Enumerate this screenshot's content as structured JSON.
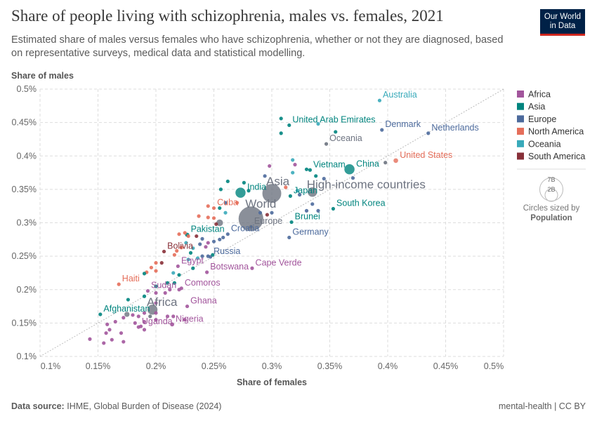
{
  "title": "Share of people living with schizophrenia, males vs. females, 2021",
  "subtitle": "Estimated share of males versus females who have schizophrenia, whether or not they are diagnosed, based on representative surveys, medical data and statistical modelling.",
  "logo": "Our World in Data",
  "footer": {
    "source_label": "Data source:",
    "source": "IHME, Global Burden of Disease (2024)",
    "right": "mental-health | CC BY"
  },
  "size_legend": {
    "big": "7B",
    "small": "2B",
    "caption": "Circles sized by",
    "variable": "Population"
  },
  "chart_data": {
    "type": "scatter",
    "xlabel": "Share of females",
    "ylabel": "Share of males",
    "xlim": [
      0.1,
      0.5
    ],
    "ylim": [
      0.1,
      0.5
    ],
    "xticks": [
      "0.1%",
      "0.15%",
      "0.2%",
      "0.25%",
      "0.3%",
      "0.35%",
      "0.4%",
      "0.45%",
      "0.5%"
    ],
    "yticks": [
      "0.1%",
      "0.15%",
      "0.2%",
      "0.25%",
      "0.3%",
      "0.35%",
      "0.4%",
      "0.45%",
      "0.5%"
    ],
    "grid": true,
    "legend_position": "right",
    "diagonal": "y = x",
    "legend": [
      {
        "name": "Africa",
        "color": "#a2559c"
      },
      {
        "name": "Asia",
        "color": "#00847e"
      },
      {
        "name": "Europe",
        "color": "#4c6a9c"
      },
      {
        "name": "North America",
        "color": "#e56e5a"
      },
      {
        "name": "Oceania",
        "color": "#38aaba"
      },
      {
        "name": "South America",
        "color": "#883039"
      }
    ],
    "region_color": "#6d7380",
    "labeled": [
      {
        "name": "Australia",
        "x": 0.393,
        "y": 0.483,
        "g": "Oceania",
        "pop": 0.026
      },
      {
        "name": "United Arab Emirates",
        "x": 0.315,
        "y": 0.446,
        "g": "Asia",
        "pop": 0.01
      },
      {
        "name": "Denmark",
        "x": 0.395,
        "y": 0.439,
        "g": "Europe",
        "pop": 0.006
      },
      {
        "name": "Netherlands",
        "x": 0.435,
        "y": 0.434,
        "g": "Europe",
        "pop": 0.018
      },
      {
        "name": "Oceania",
        "x": 0.347,
        "y": 0.418,
        "g": "region",
        "pop": 0.045
      },
      {
        "name": "United States",
        "x": 0.407,
        "y": 0.393,
        "g": "North America",
        "pop": 0.337
      },
      {
        "name": "China",
        "x": 0.367,
        "y": 0.38,
        "g": "Asia",
        "pop": 1.43
      },
      {
        "name": "Vietnam",
        "x": 0.333,
        "y": 0.379,
        "g": "Asia",
        "pop": 0.098
      },
      {
        "name": "Asia",
        "x": 0.3,
        "y": 0.344,
        "g": "region",
        "pop": 4.7
      },
      {
        "name": "High-income countries",
        "x": 0.335,
        "y": 0.346,
        "g": "region",
        "pop": 1.25
      },
      {
        "name": "India",
        "x": 0.273,
        "y": 0.345,
        "g": "Asia",
        "pop": 1.41
      },
      {
        "name": "Japan",
        "x": 0.316,
        "y": 0.34,
        "g": "Asia",
        "pop": 0.125
      },
      {
        "name": "World",
        "x": 0.282,
        "y": 0.306,
        "g": "region",
        "pop": 7.95
      },
      {
        "name": "Europe",
        "x": 0.282,
        "y": 0.294,
        "g": "region",
        "pop": 0.12
      },
      {
        "name": "Brunei",
        "x": 0.317,
        "y": 0.301,
        "g": "Asia",
        "pop": 0.0004
      },
      {
        "name": "South Korea",
        "x": 0.353,
        "y": 0.321,
        "g": "Asia",
        "pop": 0.052
      },
      {
        "name": "Germany",
        "x": 0.315,
        "y": 0.278,
        "g": "Europe",
        "pop": 0.083
      },
      {
        "name": "Croatia",
        "x": 0.262,
        "y": 0.283,
        "g": "Europe",
        "pop": 0.004
      },
      {
        "name": "Cuba",
        "x": 0.25,
        "y": 0.322,
        "g": "North America",
        "pop": 0.011
      },
      {
        "name": "Pakistan",
        "x": 0.227,
        "y": 0.282,
        "g": "Asia",
        "pop": 0.23
      },
      {
        "name": "Bolivia",
        "x": 0.207,
        "y": 0.257,
        "g": "South America",
        "pop": 0.012
      },
      {
        "name": "Russia",
        "x": 0.247,
        "y": 0.249,
        "g": "Europe",
        "pop": 0.145
      },
      {
        "name": "Egypt",
        "x": 0.219,
        "y": 0.235,
        "g": "Africa",
        "pop": 0.11
      },
      {
        "name": "Botswana",
        "x": 0.244,
        "y": 0.226,
        "g": "Africa",
        "pop": 0.0026
      },
      {
        "name": "Cape Verde",
        "x": 0.283,
        "y": 0.232,
        "g": "Africa",
        "pop": 0.0006
      },
      {
        "name": "Haiti",
        "x": 0.168,
        "y": 0.208,
        "g": "North America",
        "pop": 0.011
      },
      {
        "name": "Comoros",
        "x": 0.222,
        "y": 0.202,
        "g": "Africa",
        "pop": 0.0008
      },
      {
        "name": "Sudan",
        "x": 0.193,
        "y": 0.198,
        "g": "Africa",
        "pop": 0.046
      },
      {
        "name": "Ghana",
        "x": 0.227,
        "y": 0.175,
        "g": "Africa",
        "pop": 0.033
      },
      {
        "name": "Africa",
        "x": 0.197,
        "y": 0.17,
        "g": "region",
        "pop": 1.39
      },
      {
        "name": "Afghanistan",
        "x": 0.152,
        "y": 0.163,
        "g": "Asia",
        "pop": 0.04
      },
      {
        "name": "Nigeria",
        "x": 0.214,
        "y": 0.148,
        "g": "Africa",
        "pop": 0.213
      },
      {
        "name": "Uganda",
        "x": 0.185,
        "y": 0.144,
        "g": "Africa",
        "pop": 0.045
      }
    ],
    "unlabeled": [
      [
        0.308,
        0.456,
        "Asia"
      ],
      [
        0.308,
        0.434,
        "Asia"
      ],
      [
        0.355,
        0.436,
        "Asia"
      ],
      [
        0.34,
        0.448,
        "Oceania"
      ],
      [
        0.398,
        0.39,
        "region"
      ],
      [
        0.318,
        0.394,
        "Oceania"
      ],
      [
        0.298,
        0.385,
        "Africa"
      ],
      [
        0.32,
        0.387,
        "Africa"
      ],
      [
        0.33,
        0.38,
        "Asia"
      ],
      [
        0.318,
        0.375,
        "Oceania"
      ],
      [
        0.338,
        0.37,
        "Asia"
      ],
      [
        0.345,
        0.366,
        "Europe"
      ],
      [
        0.37,
        0.367,
        "Europe"
      ],
      [
        0.294,
        0.37,
        "Europe"
      ],
      [
        0.262,
        0.362,
        "Asia"
      ],
      [
        0.256,
        0.35,
        "Asia"
      ],
      [
        0.276,
        0.36,
        "Asia"
      ],
      [
        0.28,
        0.348,
        "Asia"
      ],
      [
        0.312,
        0.353,
        "North America"
      ],
      [
        0.322,
        0.348,
        "Oceania"
      ],
      [
        0.324,
        0.342,
        "Europe"
      ],
      [
        0.335,
        0.328,
        "Europe"
      ],
      [
        0.33,
        0.318,
        "Europe"
      ],
      [
        0.34,
        0.318,
        "Europe"
      ],
      [
        0.26,
        0.33,
        "Europe"
      ],
      [
        0.27,
        0.33,
        "North America"
      ],
      [
        0.245,
        0.325,
        "North America"
      ],
      [
        0.255,
        0.322,
        "Asia"
      ],
      [
        0.26,
        0.315,
        "Oceania"
      ],
      [
        0.237,
        0.31,
        "North America"
      ],
      [
        0.245,
        0.308,
        "North America"
      ],
      [
        0.25,
        0.307,
        "North America"
      ],
      [
        0.255,
        0.3,
        "region",
        0.65
      ],
      [
        0.252,
        0.298,
        "South America"
      ],
      [
        0.29,
        0.315,
        "Europe"
      ],
      [
        0.296,
        0.312,
        "South America"
      ],
      [
        0.3,
        0.315,
        "Europe"
      ],
      [
        0.225,
        0.285,
        "North America"
      ],
      [
        0.22,
        0.283,
        "North America"
      ],
      [
        0.228,
        0.28,
        "North America"
      ],
      [
        0.235,
        0.28,
        "South America"
      ],
      [
        0.226,
        0.27,
        "Oceania"
      ],
      [
        0.238,
        0.268,
        "Europe"
      ],
      [
        0.243,
        0.264,
        "Africa"
      ],
      [
        0.245,
        0.27,
        "Africa"
      ],
      [
        0.25,
        0.272,
        "Europe"
      ],
      [
        0.255,
        0.275,
        "Europe"
      ],
      [
        0.258,
        0.278,
        "Europe"
      ],
      [
        0.24,
        0.276,
        "Europe"
      ],
      [
        0.222,
        0.263,
        "North America"
      ],
      [
        0.218,
        0.258,
        "North America"
      ],
      [
        0.216,
        0.252,
        "North America"
      ],
      [
        0.232,
        0.262,
        "Oceania"
      ],
      [
        0.23,
        0.255,
        "Asia"
      ],
      [
        0.228,
        0.245,
        "Oceania"
      ],
      [
        0.236,
        0.247,
        "Oceania"
      ],
      [
        0.24,
        0.25,
        "Europe"
      ],
      [
        0.245,
        0.25,
        "Europe"
      ],
      [
        0.249,
        0.252,
        "Asia"
      ],
      [
        0.205,
        0.24,
        "South America"
      ],
      [
        0.2,
        0.24,
        "North America"
      ],
      [
        0.196,
        0.233,
        "North America"
      ],
      [
        0.2,
        0.228,
        "North America"
      ],
      [
        0.192,
        0.226,
        "North America"
      ],
      [
        0.19,
        0.224,
        "Asia"
      ],
      [
        0.215,
        0.225,
        "Oceania"
      ],
      [
        0.22,
        0.222,
        "Asia"
      ],
      [
        0.232,
        0.232,
        "Asia"
      ],
      [
        0.21,
        0.21,
        "Asia"
      ],
      [
        0.2,
        0.205,
        "Asia"
      ],
      [
        0.216,
        0.21,
        "Asia"
      ],
      [
        0.22,
        0.2,
        "Africa"
      ],
      [
        0.212,
        0.2,
        "Africa"
      ],
      [
        0.2,
        0.195,
        "Africa"
      ],
      [
        0.208,
        0.195,
        "Africa"
      ],
      [
        0.19,
        0.19,
        "Asia"
      ],
      [
        0.176,
        0.185,
        "Asia"
      ],
      [
        0.2,
        0.18,
        "Africa"
      ],
      [
        0.21,
        0.16,
        "Africa"
      ],
      [
        0.215,
        0.16,
        "Africa"
      ],
      [
        0.2,
        0.165,
        "Africa"
      ],
      [
        0.19,
        0.165,
        "Africa"
      ],
      [
        0.185,
        0.16,
        "Africa"
      ],
      [
        0.18,
        0.162,
        "Africa"
      ],
      [
        0.175,
        0.163,
        "region",
        0.4
      ],
      [
        0.172,
        0.158,
        "Africa"
      ],
      [
        0.182,
        0.15,
        "Africa"
      ],
      [
        0.19,
        0.152,
        "Africa"
      ],
      [
        0.195,
        0.16,
        "region"
      ],
      [
        0.2,
        0.155,
        "Africa"
      ],
      [
        0.165,
        0.152,
        "Africa"
      ],
      [
        0.158,
        0.148,
        "Africa"
      ],
      [
        0.16,
        0.14,
        "Africa"
      ],
      [
        0.157,
        0.135,
        "Africa"
      ],
      [
        0.17,
        0.135,
        "Africa"
      ],
      [
        0.19,
        0.14,
        "Africa"
      ],
      [
        0.187,
        0.145,
        "Africa"
      ],
      [
        0.143,
        0.126,
        "Africa"
      ],
      [
        0.155,
        0.12,
        "Africa"
      ],
      [
        0.162,
        0.125,
        "Africa"
      ],
      [
        0.172,
        0.122,
        "Africa"
      ],
      [
        0.225,
        0.155,
        "Africa"
      ]
    ]
  }
}
